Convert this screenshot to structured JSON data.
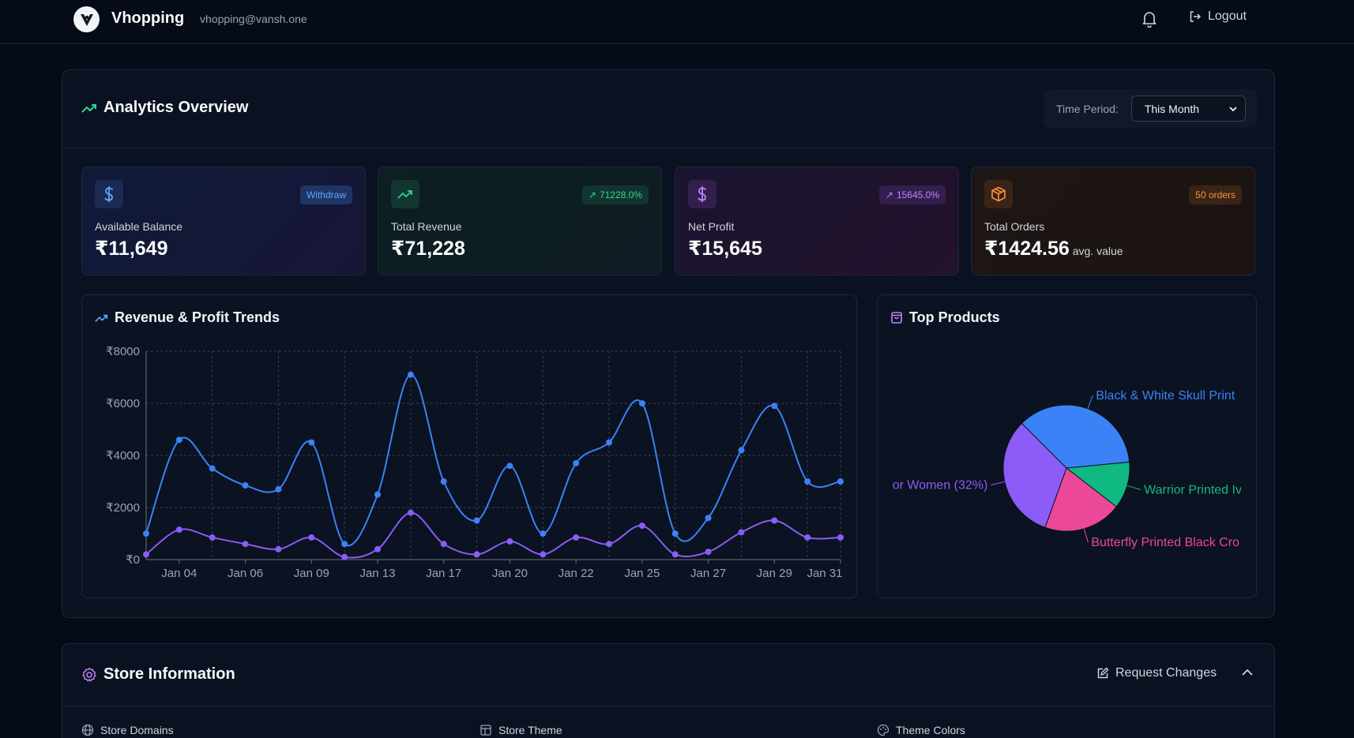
{
  "header": {
    "brand": "Vhopping",
    "email": "vhopping@vansh.one",
    "logout_label": "Logout"
  },
  "analytics": {
    "title": "Analytics Overview",
    "time_period_label": "Time Period:",
    "time_period_value": "This Month"
  },
  "stats": [
    {
      "label": "Available Balance",
      "value": "₹11,649",
      "badge": "Withdraw",
      "icon": "dollar-icon",
      "accent": "#60a5fa"
    },
    {
      "label": "Total Revenue",
      "value": "₹71,228",
      "badge": "71228.0%",
      "icon": "trending-up-icon",
      "accent": "#34d399"
    },
    {
      "label": "Net Profit",
      "value": "₹15,645",
      "badge": "15645.0%",
      "icon": "dollar-icon",
      "accent": "#c084fc"
    },
    {
      "label": "Total Orders",
      "value": "₹1424.56",
      "value_suffix": "avg. value",
      "badge": "50 orders",
      "icon": "box-icon",
      "accent": "#fb923c"
    }
  ],
  "trends": {
    "title": "Revenue & Profit Trends"
  },
  "top_products": {
    "title": "Top Products"
  },
  "chart_data": [
    {
      "type": "line",
      "title": "Revenue & Profit Trends",
      "ylim": [
        0,
        8000
      ],
      "y_ticks": [
        "₹0",
        "₹2000",
        "₹4000",
        "₹6000",
        "₹8000"
      ],
      "y_tick_values": [
        0,
        2000,
        4000,
        6000,
        8000
      ],
      "x_ticks": [
        "Jan 04",
        "Jan 06",
        "Jan 09",
        "Jan 13",
        "Jan 17",
        "Jan 20",
        "Jan 22",
        "Jan 25",
        "Jan 27",
        "Jan 29",
        "Jan 31"
      ],
      "grid": true,
      "series": [
        {
          "color": "#3b82f6",
          "values": [
            1000,
            4600,
            3500,
            2850,
            2700,
            4500,
            600,
            2500,
            7100,
            3000,
            1500,
            3600,
            1000,
            3700,
            4500,
            6000,
            1000,
            1600,
            4200,
            5900,
            3000,
            3000
          ]
        },
        {
          "color": "#8b5cf6",
          "values": [
            200,
            1150,
            850,
            600,
            400,
            850,
            100,
            400,
            1800,
            600,
            200,
            700,
            200,
            850,
            600,
            1300,
            200,
            300,
            1050,
            1500,
            850,
            850
          ]
        }
      ]
    },
    {
      "type": "pie",
      "title": "Top Products",
      "slices": [
        {
          "label": "Black & White Skull Print",
          "value": 36,
          "color": "#3b82f6"
        },
        {
          "label": "Warrior Printed Iv",
          "value": 12,
          "color": "#10b981"
        },
        {
          "label": "Butterfly Printed Black Cro",
          "value": 20,
          "color": "#ec4899"
        },
        {
          "label": "or Women (32%)",
          "value": 32,
          "color": "#8b5cf6"
        }
      ]
    }
  ],
  "store": {
    "title": "Store Information",
    "request_changes": "Request Changes",
    "sections": [
      "Store Domains",
      "Store Theme",
      "Theme Colors"
    ]
  }
}
